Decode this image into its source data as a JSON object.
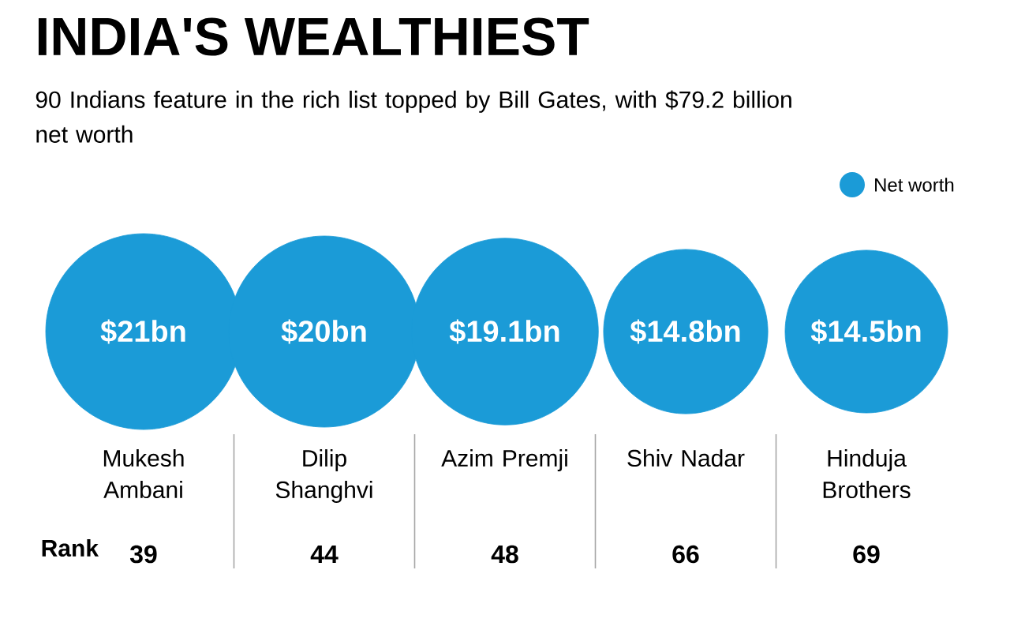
{
  "chart_data": {
    "type": "other",
    "title": "INDIA'S WEALTHIEST",
    "subtitle": "90 Indians feature in the rich list topped by Bill Gates, with $79.2 billion net worth",
    "categories": [
      "Mukesh Ambani",
      "Dilip Shanghvi",
      "Azim Premji",
      "Shiv Nadar",
      "Hinduja Brothers"
    ],
    "series": [
      {
        "name": "Net worth",
        "color": "#1b9bd7",
        "values": [
          21,
          20,
          19.1,
          14.8,
          14.5
        ],
        "value_labels": [
          "$21bn",
          "$20bn",
          "$19.1bn",
          "$14.8bn",
          "$14.5bn"
        ]
      },
      {
        "name": "Rank",
        "values": [
          39,
          44,
          48,
          66,
          69
        ],
        "value_labels": [
          "39",
          "44",
          "48",
          "66",
          "69"
        ]
      }
    ],
    "legend": "top right"
  }
}
